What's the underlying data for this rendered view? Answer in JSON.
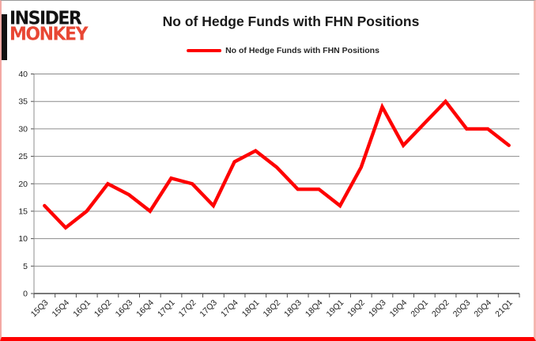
{
  "logo": {
    "line1": "INSIDER",
    "line2": "MONKEY",
    "accent_color": "#e84734"
  },
  "title": "No of Hedge Funds with FHN Positions",
  "legend": {
    "label": "No of Hedge Funds with FHN Positions"
  },
  "colors": {
    "line": "#fe0000",
    "gridline": "#8c8c8c",
    "axis": "#4d4d4d",
    "tick_text": "#1f1f1f",
    "border_shadow": "#fe0000"
  },
  "chart_data": {
    "type": "line",
    "title": "No of Hedge Funds with FHN Positions",
    "categories": [
      "15Q3",
      "15Q4",
      "16Q1",
      "16Q2",
      "16Q3",
      "16Q4",
      "17Q1",
      "17Q2",
      "17Q3",
      "17Q4",
      "18Q1",
      "18Q2",
      "18Q3",
      "18Q4",
      "19Q1",
      "19Q2",
      "19Q3",
      "19Q4",
      "20Q1",
      "20Q2",
      "20Q3",
      "20Q4",
      "21Q1"
    ],
    "series": [
      {
        "name": "No of Hedge Funds with FHN Positions",
        "values": [
          16,
          12,
          15,
          20,
          18,
          15,
          21,
          20,
          16,
          24,
          26,
          23,
          19,
          19,
          16,
          23,
          34,
          27,
          31,
          35,
          30,
          30,
          27
        ]
      }
    ],
    "xlabel": "",
    "ylabel": "",
    "ylim": [
      0,
      40
    ],
    "yticks": [
      0,
      5,
      10,
      15,
      20,
      25,
      30,
      35,
      40
    ],
    "grid": true,
    "legend_position": "top-center",
    "x_tick_label_rotation_deg": -45
  }
}
